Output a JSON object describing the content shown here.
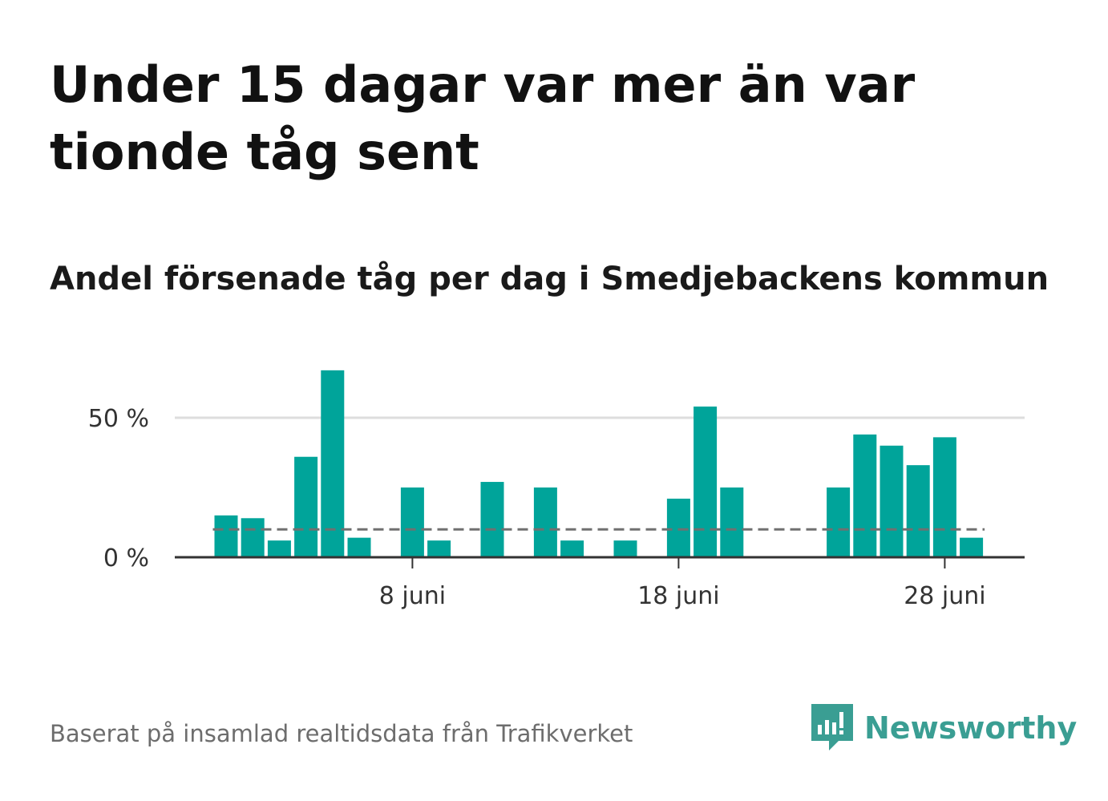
{
  "title": "Under 15 dagar var mer än var tionde tåg sent",
  "subtitle": "Andel försenade tåg per dag i Smedjebackens kommun",
  "footer": "Baserat på insamlad realtidsdata från Trafikverket",
  "brand": {
    "name": "Newsworthy",
    "logo_icon": "newsworthy-logo-icon",
    "color": "#3a9e93"
  },
  "colors": {
    "bar": "#00a49a",
    "reference_line": "#707070",
    "grid": "#dddddd",
    "axis": "#333333"
  },
  "chart_data": {
    "type": "bar",
    "x": [
      "2024-06-01",
      "2024-06-02",
      "2024-06-03",
      "2024-06-04",
      "2024-06-05",
      "2024-06-06",
      "2024-06-07",
      "2024-06-08",
      "2024-06-09",
      "2024-06-10",
      "2024-06-11",
      "2024-06-12",
      "2024-06-13",
      "2024-06-14",
      "2024-06-15",
      "2024-06-16",
      "2024-06-17",
      "2024-06-18",
      "2024-06-19",
      "2024-06-20",
      "2024-06-21",
      "2024-06-22",
      "2024-06-23",
      "2024-06-24",
      "2024-06-25",
      "2024-06-26",
      "2024-06-27",
      "2024-06-28",
      "2024-06-29"
    ],
    "values": [
      15,
      14,
      6,
      36,
      67,
      7,
      0,
      25,
      6,
      0,
      27,
      0,
      25,
      6,
      0,
      6,
      0,
      21,
      54,
      25,
      0,
      0,
      0,
      25,
      44,
      40,
      33,
      43,
      7
    ],
    "reference_line": {
      "value": 10
    },
    "yticks": [
      {
        "value": 0,
        "label": "0 %"
      },
      {
        "value": 50,
        "label": "50 %"
      }
    ],
    "xticks": [
      {
        "x": "2024-06-08",
        "label": "8 juni"
      },
      {
        "x": "2024-06-18",
        "label": "18 juni"
      },
      {
        "x": "2024-06-28",
        "label": "28 juni"
      }
    ],
    "ylim": [
      0,
      70
    ],
    "xlabel": "",
    "ylabel": "",
    "grid": true
  }
}
